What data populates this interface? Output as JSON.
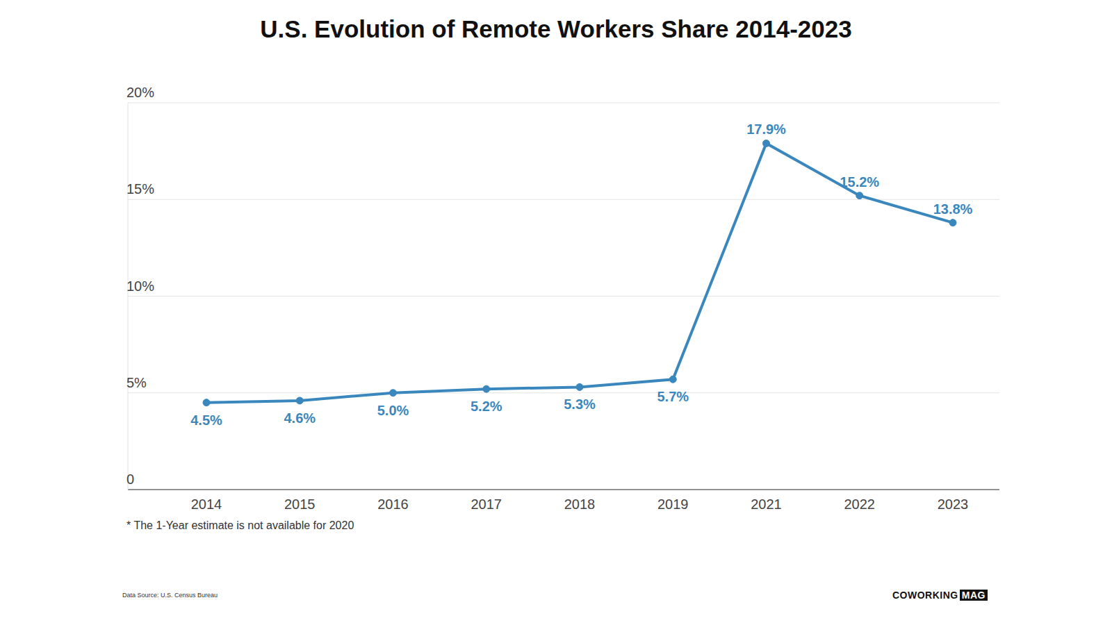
{
  "chart_data": {
    "type": "line",
    "title": "U.S. Evolution of Remote Workers Share 2014-2023",
    "categories": [
      "2014",
      "2015",
      "2016",
      "2017",
      "2018",
      "2019",
      "2021",
      "2022",
      "2023"
    ],
    "values": [
      4.5,
      4.6,
      5.0,
      5.2,
      5.3,
      5.7,
      17.9,
      15.2,
      13.8
    ],
    "value_labels": [
      "4.5%",
      "4.6%",
      "5.0%",
      "5.2%",
      "5.3%",
      "5.7%",
      "17.9%",
      "15.2%",
      "13.8%"
    ],
    "color": "#3a87bd",
    "ylim": [
      0,
      20
    ],
    "yticks": [
      0,
      {
        "value": 5,
        "label": "5%"
      },
      {
        "value": 10,
        "label": "10%"
      },
      {
        "value": 15,
        "label": "15%"
      },
      {
        "value": 20,
        "label": "20%"
      }
    ],
    "grid": true,
    "data_labels": true,
    "marker": "circle",
    "footnote": "* The 1-Year estimate is not available for 2020",
    "source": "Data Source: U.S. Census Bureau",
    "logo": {
      "text": "COWORKING",
      "badge": "MAG"
    }
  }
}
